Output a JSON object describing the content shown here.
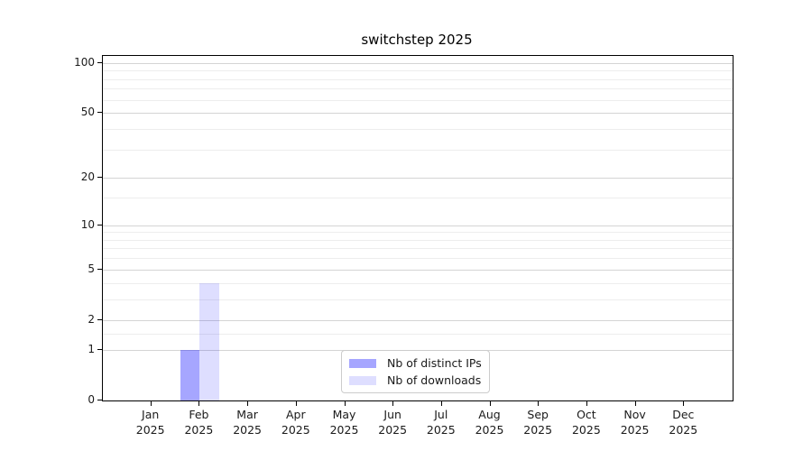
{
  "chart_data": {
    "type": "bar",
    "title": "switchstep 2025",
    "categories": [
      "Jan",
      "Feb",
      "Mar",
      "Apr",
      "May",
      "Jun",
      "Jul",
      "Aug",
      "Sep",
      "Oct",
      "Nov",
      "Dec"
    ],
    "year_label": "2025",
    "series": [
      {
        "name": "Nb of distinct IPs",
        "color": "#0000FF59",
        "values": [
          0,
          1,
          0,
          0,
          0,
          0,
          0,
          0,
          0,
          0,
          0,
          0
        ]
      },
      {
        "name": "Nb of downloads",
        "color": "#0000FF21",
        "values": [
          0,
          4,
          0,
          0,
          0,
          0,
          0,
          0,
          0,
          0,
          0,
          0
        ]
      }
    ],
    "y_axis": {
      "scale": "log1p",
      "major_ticks": [
        0,
        1,
        2,
        5,
        10,
        20,
        50,
        100
      ],
      "minor_gridlines": [
        1.5,
        3,
        4,
        6,
        7,
        8,
        9,
        15,
        30,
        40,
        60,
        70,
        80,
        90
      ],
      "ylim": [
        0,
        110
      ]
    },
    "x_axis": {
      "slots": 13
    },
    "grid": {
      "major_color": "#d4d4d4",
      "minor_color": "#ededed"
    },
    "legend_position": "lower center"
  }
}
